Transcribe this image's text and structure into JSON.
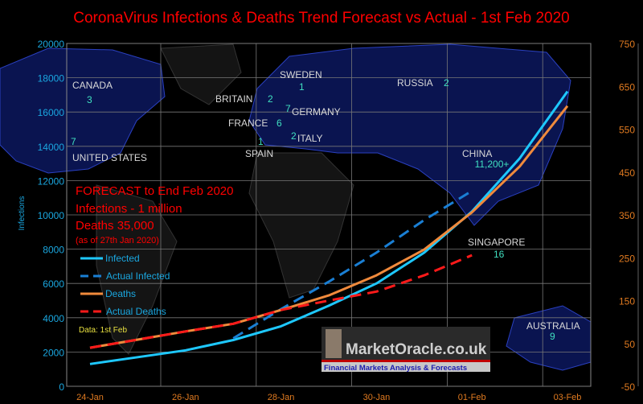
{
  "colors": {
    "infected": "#1ec8ff",
    "actual_infected": "#1a7fd4",
    "deaths": "#f08a3c",
    "actual_deaths": "#ff1a1a",
    "left_axis": "#1aa7e0",
    "right_axis": "#e07a20",
    "title": "#ff0000",
    "country_num": "#40e0c0",
    "map": "#0a1450"
  },
  "chart_data": {
    "type": "line",
    "title": "CoronaVirus Infections & Deaths Trend Forecast vs Actual - 1st Feb 2020",
    "ylabel": "Infections",
    "ylim": [
      0,
      20000
    ],
    "y2lim": [
      -50,
      750
    ],
    "yticks": [
      "0",
      "2000",
      "4000",
      "6000",
      "8000",
      "10000",
      "12000",
      "14000",
      "16000",
      "18000",
      "20000"
    ],
    "y2ticks": [
      "-50",
      "50",
      "150",
      "250",
      "350",
      "450",
      "550",
      "650",
      "750"
    ],
    "xticks": [
      "24-Jan",
      "26-Jan",
      "28-Jan",
      "30-Jan",
      "01-Feb",
      "03-Feb"
    ],
    "x": [
      "24-Jan",
      "25-Jan",
      "26-Jan",
      "27-Jan",
      "28-Jan",
      "29-Jan",
      "30-Jan",
      "31-Jan",
      "01-Feb",
      "02-Feb",
      "03-Feb"
    ],
    "grid": true,
    "series": [
      {
        "name": "Infected",
        "axis": "left",
        "style": "solid",
        "values": [
          1300,
          1700,
          2100,
          2700,
          3500,
          4700,
          6000,
          7800,
          10200,
          13300,
          17200
        ]
      },
      {
        "name": "Actual Infected",
        "axis": "left",
        "style": "dashed",
        "values": [
          null,
          null,
          null,
          2800,
          4500,
          6100,
          7800,
          9700,
          11400,
          null,
          null
        ]
      },
      {
        "name": "Deaths",
        "axis": "right",
        "style": "solid",
        "values": [
          40,
          59,
          78,
          96,
          128,
          162,
          209,
          269,
          356,
          463,
          604
        ]
      },
      {
        "name": "Actual Deaths",
        "axis": "right",
        "style": "dashed",
        "values": [
          40,
          59,
          78,
          96,
          128,
          150,
          171,
          209,
          256,
          null,
          null
        ]
      }
    ],
    "legend_position": "left"
  },
  "forecast": {
    "line1": "FORECAST to End Feb 2020",
    "line2": "Infections - 1 million",
    "line3": "Deaths 35,000",
    "line4": "(as of 27th Jan 2020)"
  },
  "data_note": "Data: 1st Feb",
  "countries": [
    {
      "name": "CANADA",
      "count": "3"
    },
    {
      "name": "UNITED STATES",
      "count": "7"
    },
    {
      "name": "BRITAIN",
      "count": "2"
    },
    {
      "name": "SWEDEN",
      "count": "1"
    },
    {
      "name": "GERMANY",
      "count": "7"
    },
    {
      "name": "FRANCE",
      "count": "6"
    },
    {
      "name": "ITALY",
      "count": "2"
    },
    {
      "name": "SPAIN",
      "count": "1"
    },
    {
      "name": "RUSSIA",
      "count": "2"
    },
    {
      "name": "CHINA",
      "count": "11,200+"
    },
    {
      "name": "SINGAPORE",
      "count": "16"
    },
    {
      "name": "AUSTRALIA",
      "count": "9"
    }
  ],
  "logo": {
    "name": "MarketOracle.co.uk",
    "tagline": "Financial Markets Analysis & Forecasts"
  }
}
